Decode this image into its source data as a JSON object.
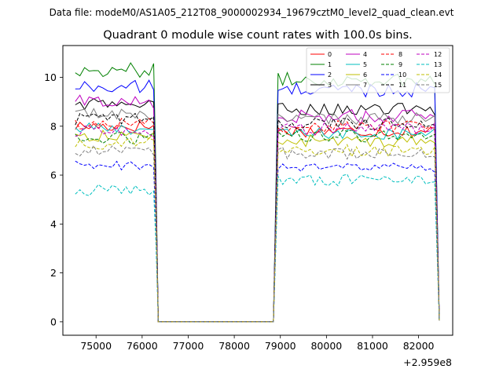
{
  "suptitle": "Data file: modeM0/AS1A05_212T08_9000002934_19679cztM0_level2_quad_clean.evt",
  "chart_data": {
    "type": "line",
    "title": "Quadrant 0 module wise count rates with 100.0s bins.",
    "xlabel": "",
    "ylabel": "",
    "x_offset_label": "+2.959e8",
    "xlim": [
      74280,
      82740
    ],
    "ylim": [
      -0.55,
      11.3
    ],
    "x_ticks": [
      75000,
      76000,
      77000,
      78000,
      79000,
      80000,
      81000,
      82000
    ],
    "x_tick_labels": [
      "75000",
      "76000",
      "77000",
      "78000",
      "79000",
      "80000",
      "81000",
      "82000"
    ],
    "y_ticks": [
      0,
      2,
      4,
      6,
      8,
      10
    ],
    "y_tick_labels": [
      "0",
      "2",
      "4",
      "6",
      "8",
      "10"
    ],
    "grid": false,
    "legend_position": "top-right",
    "segments": {
      "seg1_start": 74550,
      "seg1_end": 76250,
      "drop_end": 76350,
      "gap_end": 78850,
      "rise_end": 78950,
      "seg2_end": 82350,
      "last_x": 82450,
      "step": 100
    },
    "series": [
      {
        "name": "0",
        "color": "#ff0000",
        "dash": "solid",
        "level1": 8.0,
        "level2": 7.8,
        "noise": 0.25
      },
      {
        "name": "1",
        "color": "#008000",
        "dash": "solid",
        "level1": 10.3,
        "level2": 9.9,
        "noise": 0.3
      },
      {
        "name": "2",
        "color": "#0000ff",
        "dash": "solid",
        "level1": 9.6,
        "level2": 9.5,
        "noise": 0.3
      },
      {
        "name": "3",
        "color": "#000000",
        "dash": "solid",
        "level1": 8.9,
        "level2": 8.7,
        "noise": 0.25
      },
      {
        "name": "4",
        "color": "#bf00bf",
        "dash": "solid",
        "level1": 9.0,
        "level2": 8.4,
        "noise": 0.3
      },
      {
        "name": "5",
        "color": "#00bfbf",
        "dash": "solid",
        "level1": 7.9,
        "level2": 7.7,
        "noise": 0.25
      },
      {
        "name": "6",
        "color": "#bfbf00",
        "dash": "solid",
        "level1": 7.6,
        "level2": 7.4,
        "noise": 0.25
      },
      {
        "name": "7",
        "color": "#7f7f7f",
        "dash": "solid",
        "level1": 8.5,
        "level2": 8.3,
        "noise": 0.25
      },
      {
        "name": "8",
        "color": "#ff0000",
        "dash": "dashed",
        "level1": 8.1,
        "level2": 8.0,
        "noise": 0.25
      },
      {
        "name": "9",
        "color": "#008000",
        "dash": "dashed",
        "level1": 7.5,
        "level2": 7.6,
        "noise": 0.25
      },
      {
        "name": "10",
        "color": "#0000ff",
        "dash": "dashed",
        "level1": 6.4,
        "level2": 6.3,
        "noise": 0.2
      },
      {
        "name": "11",
        "color": "#000000",
        "dash": "dashed",
        "level1": 8.3,
        "level2": 8.1,
        "noise": 0.25
      },
      {
        "name": "12",
        "color": "#bf00bf",
        "dash": "dashed",
        "level1": 7.8,
        "level2": 7.9,
        "noise": 0.25
      },
      {
        "name": "13",
        "color": "#00bfbf",
        "dash": "dashed",
        "level1": 5.4,
        "level2": 5.8,
        "noise": 0.25
      },
      {
        "name": "14",
        "color": "#bfbf00",
        "dash": "dashed",
        "level1": 7.3,
        "level2": 7.0,
        "noise": 0.25
      },
      {
        "name": "15",
        "color": "#7f7f7f",
        "dash": "dashed",
        "level1": 7.0,
        "level2": 6.9,
        "noise": 0.25
      }
    ]
  }
}
